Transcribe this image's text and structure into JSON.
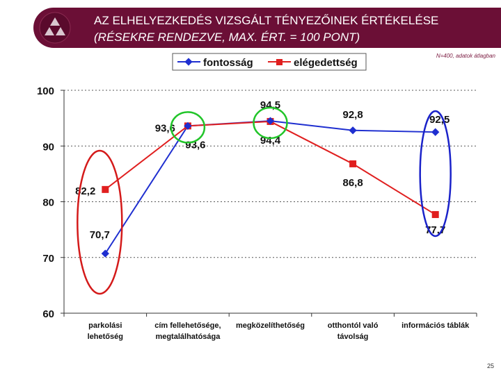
{
  "header": {
    "title_line1": "AZ ELHELYEZKEDÉS VIZSGÁLT TÉNYEZŐINEK ÉRTÉKELÉSE",
    "title_line2": "(RÉSEKRE RENDEZVE, MAX. ÉRT. = 100 PONT)",
    "note": "N=400, adatok átlagban"
  },
  "page_number": "25",
  "colors": {
    "header_bg": "#6b0f36",
    "series1": "#1f2fd0",
    "series2": "#e01f1f",
    "highlight_red": "#d41a1a",
    "highlight_green": "#22c52a",
    "highlight_blue": "#1a22c9"
  },
  "chart_data": {
    "type": "line",
    "categories": [
      [
        "parkolási",
        "lehetőség"
      ],
      [
        "cím fellehetősége,",
        "megtalálhatósága"
      ],
      [
        "megközelíthetőség"
      ],
      [
        "otthontól való",
        "távolság"
      ],
      [
        "információs táblák"
      ]
    ],
    "series": [
      {
        "name": "fontosság",
        "values": [
          70.7,
          93.6,
          94.5,
          92.8,
          92.5
        ]
      },
      {
        "name": "elégedettség",
        "values": [
          82.2,
          93.6,
          94.4,
          86.8,
          77.7
        ]
      }
    ],
    "value_labels": [
      [
        "70,7",
        "93,6",
        "94,5",
        "92,8",
        "92,5"
      ],
      [
        "82,2",
        "93,6",
        "94,4",
        "86,8",
        "77,7"
      ]
    ],
    "ylim": [
      60,
      100
    ],
    "yticks": [
      60,
      70,
      80,
      90,
      100
    ],
    "grid": true,
    "legend_position": "top",
    "highlights": [
      {
        "category_index": 0,
        "color": "red"
      },
      {
        "category_index": 1,
        "color": "green"
      },
      {
        "category_index": 2,
        "color": "green"
      },
      {
        "category_index": 4,
        "color": "blue"
      }
    ]
  }
}
